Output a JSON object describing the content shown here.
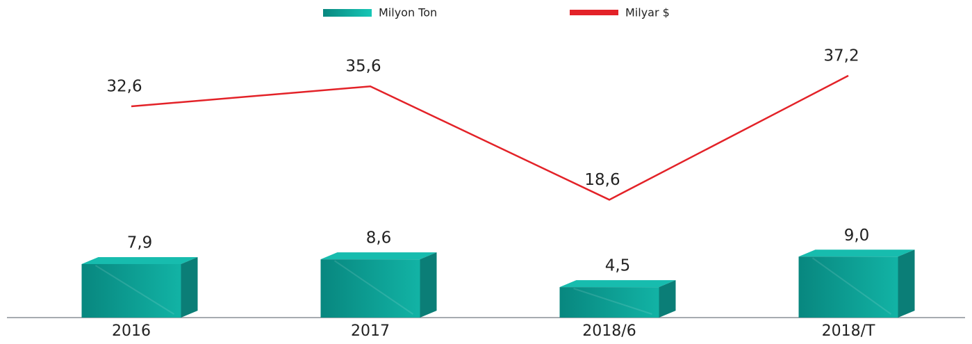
{
  "chart_data": {
    "type": "bar_line",
    "categories": [
      "2016",
      "2017",
      "2018/6",
      "2018/T"
    ],
    "series": [
      {
        "name": "Milyon Ton",
        "color": "#13a89e",
        "type": "bar",
        "values": [
          7.9,
          8.6,
          4.5,
          9.0
        ],
        "value_labels": [
          "7,9",
          "8,6",
          "4,5",
          "9,0"
        ]
      },
      {
        "name": "Milyar $",
        "color": "#e32228",
        "type": "line",
        "axis": "y2",
        "values": [
          32.6,
          35.6,
          18.6,
          37.2
        ],
        "value_labels": [
          "32,6",
          "35,6",
          "18,6",
          "37,2"
        ]
      }
    ],
    "ylim": [
      0,
      40
    ],
    "y2lim": [
      0,
      40
    ],
    "grid": false,
    "legend": "top"
  }
}
